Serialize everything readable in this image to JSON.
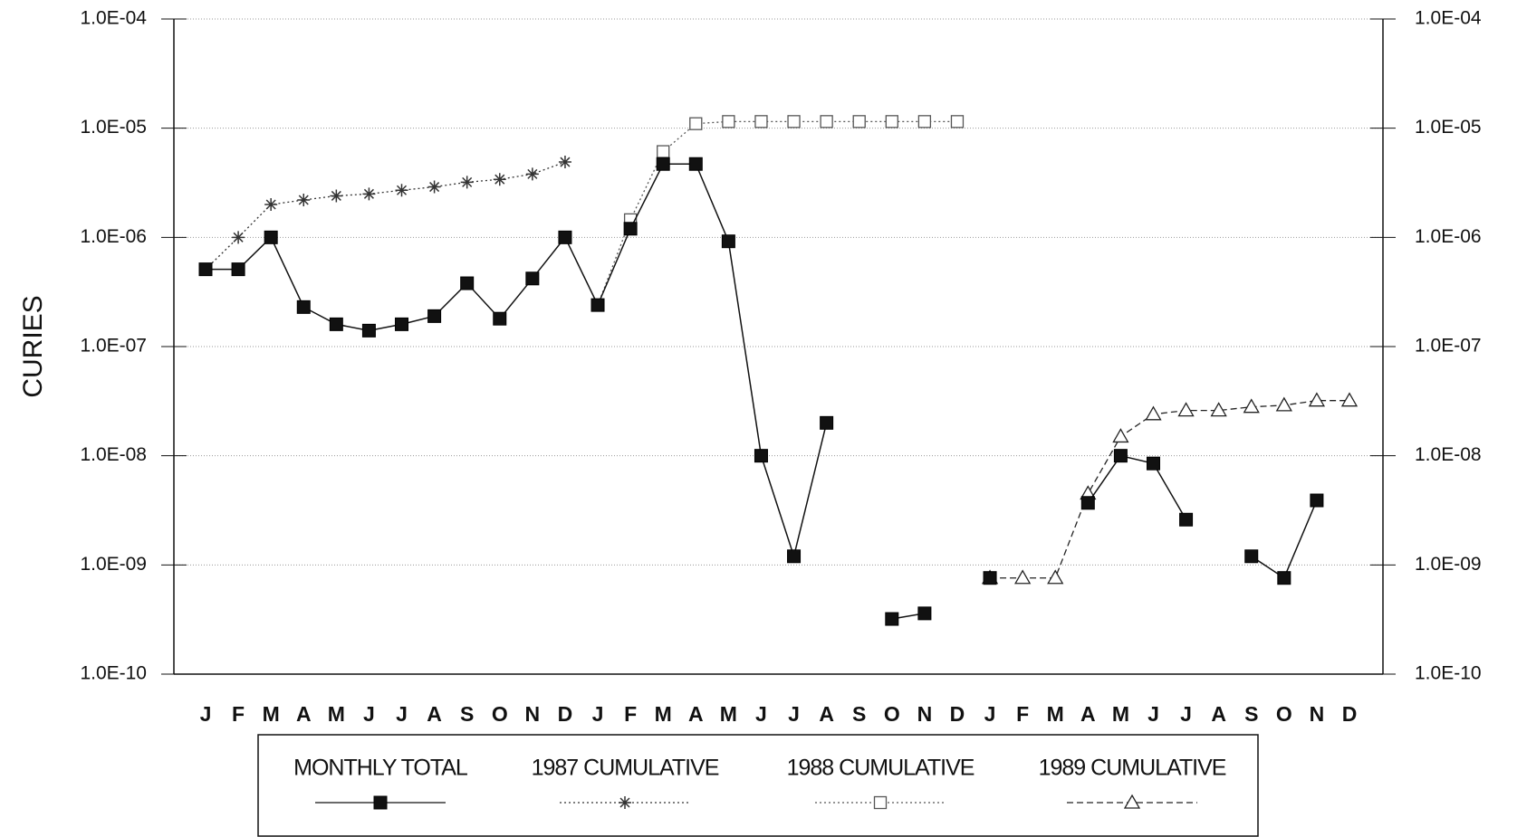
{
  "chart_data": {
    "type": "line",
    "y_label": "CURIES",
    "log_scale": true,
    "grid": true,
    "categories": [
      "J",
      "F",
      "M",
      "A",
      "M",
      "J",
      "J",
      "A",
      "S",
      "O",
      "N",
      "D",
      "J",
      "F",
      "M",
      "A",
      "M",
      "J",
      "J",
      "A",
      "S",
      "O",
      "N",
      "D",
      "J",
      "F",
      "M",
      "A",
      "M",
      "J",
      "J",
      "A",
      "S",
      "O",
      "N",
      "D"
    ],
    "ylim": [
      1e-10,
      0.0001
    ],
    "yticks": [
      {
        "value": 1e-10,
        "label": "1.0E-10"
      },
      {
        "value": 1e-09,
        "label": "1.0E-09"
      },
      {
        "value": 1e-08,
        "label": "1.0E-08"
      },
      {
        "value": 1e-07,
        "label": "1.0E-07"
      },
      {
        "value": 1e-06,
        "label": "1.0E-06"
      },
      {
        "value": 1e-05,
        "label": "1.0E-05"
      },
      {
        "value": 0.0001,
        "label": "1.0E-04"
      }
    ],
    "series": [
      {
        "name": "MONTHLY TOTAL",
        "color": "#111111",
        "marker": "filled-square",
        "line": "solid",
        "values": [
          5.1e-07,
          5.1e-07,
          1e-06,
          2.3e-07,
          1.6e-07,
          1.4e-07,
          1.6e-07,
          1.9e-07,
          3.8e-07,
          1.8e-07,
          4.2e-07,
          1e-06,
          2.4e-07,
          1.2e-06,
          4.7e-06,
          4.7e-06,
          9.2e-07,
          1e-08,
          1.2e-09,
          2e-08,
          null,
          3.2e-10,
          3.6e-10,
          null,
          7.6e-10,
          null,
          null,
          3.7e-09,
          1e-08,
          8.5e-09,
          2.6e-09,
          null,
          1.2e-09,
          7.6e-10,
          3.9e-09,
          null
        ]
      },
      {
        "name": "1987 CUMULATIVE",
        "color": "#333333",
        "marker": "asterisk",
        "line": "dotted",
        "values": [
          5.1e-07,
          1e-06,
          2e-06,
          2.2e-06,
          2.4e-06,
          2.5e-06,
          2.7e-06,
          2.9e-06,
          3.2e-06,
          3.4e-06,
          3.8e-06,
          4.9e-06,
          null,
          null,
          null,
          null,
          null,
          null,
          null,
          null,
          null,
          null,
          null,
          null,
          null,
          null,
          null,
          null,
          null,
          null,
          null,
          null,
          null,
          null,
          null,
          null
        ]
      },
      {
        "name": "1988 CUMULATIVE",
        "color": "#555555",
        "marker": "open-square",
        "line": "dotted",
        "values": [
          null,
          null,
          null,
          null,
          null,
          null,
          null,
          null,
          null,
          null,
          null,
          null,
          2.4e-07,
          1.45e-06,
          6.1e-06,
          1.1e-05,
          1.15e-05,
          1.15e-05,
          1.15e-05,
          1.15e-05,
          1.15e-05,
          1.15e-05,
          1.15e-05,
          1.15e-05,
          null,
          null,
          null,
          null,
          null,
          null,
          null,
          null,
          null,
          null,
          null,
          null
        ]
      },
      {
        "name": "1989 CUMULATIVE",
        "color": "#222222",
        "marker": "open-triangle",
        "line": "dashed",
        "values": [
          null,
          null,
          null,
          null,
          null,
          null,
          null,
          null,
          null,
          null,
          null,
          null,
          null,
          null,
          null,
          null,
          null,
          null,
          null,
          null,
          null,
          null,
          null,
          null,
          7.6e-10,
          7.6e-10,
          7.6e-10,
          4.5e-09,
          1.5e-08,
          2.4e-08,
          2.6e-08,
          2.6e-08,
          2.8e-08,
          2.9e-08,
          3.2e-08,
          3.2e-08
        ]
      }
    ]
  }
}
